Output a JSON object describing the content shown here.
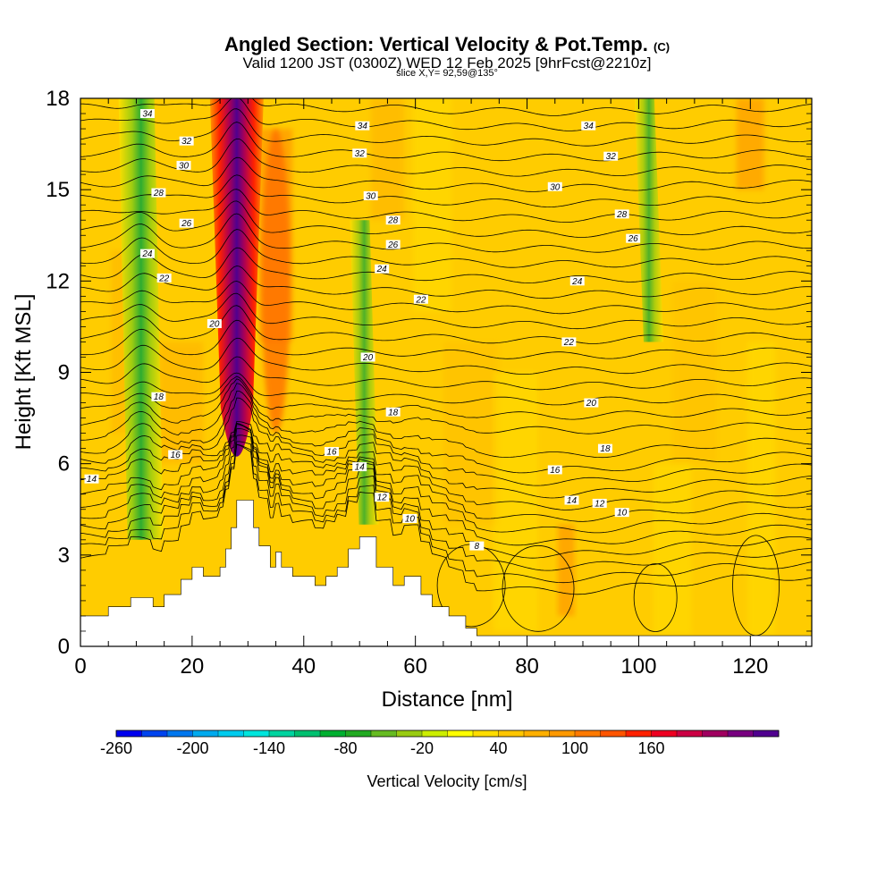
{
  "header": {
    "title": "Angled Section: Vertical Velocity & Pot.Temp.",
    "title_mark": "(C)",
    "subtitle": "Valid 1200 JST (0300Z) WED 12 Feb 2025 [9hrFcst@2210z]",
    "slice": "slice X,Y= 92,59@135°"
  },
  "colorbar": {
    "label": "Vertical Velocity [cm/s]",
    "tick_labels": [
      "-260",
      "-200",
      "-140",
      "-80",
      "-20",
      "40",
      "100",
      "160"
    ],
    "colors": [
      "#0000ee",
      "#0044ee",
      "#0077ee",
      "#00aaee",
      "#00ccee",
      "#00e6dd",
      "#00d4a0",
      "#00c070",
      "#00b030",
      "#22aa22",
      "#66bb22",
      "#99cc11",
      "#ccee00",
      "#ffff00",
      "#ffdd00",
      "#ffc600",
      "#ffb000",
      "#ff9900",
      "#ff7a00",
      "#ff5500",
      "#ff2200",
      "#ee0022",
      "#cc0044",
      "#a00060",
      "#780080",
      "#50008f"
    ]
  },
  "chart_data": {
    "type": "heatmap",
    "title": "Angled Section: Vertical Velocity & Pot.Temp.",
    "xlabel": "Distance [nm]",
    "ylabel": "Height [Kft MSL]",
    "xlim": [
      0,
      131
    ],
    "ylim": [
      0,
      18
    ],
    "x_ticks": [
      0,
      20,
      40,
      60,
      80,
      100,
      120
    ],
    "y_ticks": [
      0,
      3,
      6,
      9,
      12,
      15,
      18
    ],
    "fill_variable": "Vertical Velocity [cm/s]",
    "contour_variable": "Potential Temperature [C]",
    "updraft_cores": [
      {
        "x": 28,
        "y_range": [
          5.5,
          18
        ],
        "max_velocity": 180
      },
      {
        "x": 35,
        "y_range": [
          7,
          17
        ],
        "max_velocity": 70
      }
    ],
    "downdraft_bands": [
      {
        "x": 11,
        "y_range": [
          3.5,
          18
        ],
        "min_velocity": -110
      },
      {
        "x": 51,
        "y_range": [
          4,
          14
        ],
        "min_velocity": -60
      },
      {
        "x": 102,
        "y_range": [
          10,
          18
        ],
        "min_velocity": -40
      }
    ],
    "terrain": [
      [
        0,
        1
      ],
      [
        5,
        1
      ],
      [
        5,
        1.3
      ],
      [
        9,
        1.3
      ],
      [
        9,
        1.6
      ],
      [
        13,
        1.6
      ],
      [
        13,
        1.3
      ],
      [
        15,
        1.3
      ],
      [
        15,
        1.7
      ],
      [
        18,
        1.7
      ],
      [
        18,
        2.2
      ],
      [
        20,
        2.2
      ],
      [
        20,
        2.6
      ],
      [
        22,
        2.6
      ],
      [
        22,
        2.3
      ],
      [
        25,
        2.3
      ],
      [
        25,
        2.6
      ],
      [
        26,
        2.6
      ],
      [
        26,
        3.2
      ],
      [
        27,
        3.2
      ],
      [
        27,
        3.9
      ],
      [
        28,
        3.9
      ],
      [
        28,
        4.8
      ],
      [
        31,
        4.8
      ],
      [
        31,
        3.9
      ],
      [
        32,
        3.9
      ],
      [
        32,
        3.3
      ],
      [
        34,
        3.3
      ],
      [
        34,
        2.6
      ],
      [
        35,
        2.6
      ],
      [
        35,
        3.1
      ],
      [
        36,
        3.1
      ],
      [
        36,
        2.6
      ],
      [
        38,
        2.6
      ],
      [
        38,
        2.3
      ],
      [
        42,
        2.3
      ],
      [
        42,
        2
      ],
      [
        44,
        2
      ],
      [
        44,
        2.3
      ],
      [
        46,
        2.3
      ],
      [
        46,
        2.6
      ],
      [
        48,
        2.6
      ],
      [
        48,
        3.2
      ],
      [
        50,
        3.2
      ],
      [
        50,
        3.6
      ],
      [
        53,
        3.6
      ],
      [
        53,
        2.6
      ],
      [
        56,
        2.6
      ],
      [
        56,
        2
      ],
      [
        58,
        2
      ],
      [
        58,
        2.3
      ],
      [
        61,
        2.3
      ],
      [
        61,
        1.7
      ],
      [
        63,
        1.7
      ],
      [
        63,
        1.3
      ],
      [
        66,
        1.3
      ],
      [
        66,
        1
      ],
      [
        69,
        1
      ],
      [
        69,
        0.6
      ],
      [
        71,
        0.6
      ],
      [
        71,
        0.35
      ],
      [
        131,
        0.35
      ]
    ],
    "contour_labels": [
      {
        "value": "34",
        "x": 12,
        "y": 17.5
      },
      {
        "value": "32",
        "x": 19,
        "y": 16.6
      },
      {
        "value": "30",
        "x": 18.5,
        "y": 15.8
      },
      {
        "value": "28",
        "x": 14,
        "y": 14.9
      },
      {
        "value": "26",
        "x": 19,
        "y": 13.9
      },
      {
        "value": "24",
        "x": 12,
        "y": 12.9
      },
      {
        "value": "22",
        "x": 15,
        "y": 12.1
      },
      {
        "value": "20",
        "x": 24,
        "y": 10.6
      },
      {
        "value": "18",
        "x": 14,
        "y": 8.2
      },
      {
        "value": "16",
        "x": 17,
        "y": 6.3
      },
      {
        "value": "14",
        "x": 2,
        "y": 5.5
      },
      {
        "value": "34",
        "x": 50.5,
        "y": 17.1
      },
      {
        "value": "32",
        "x": 50,
        "y": 16.2
      },
      {
        "value": "30",
        "x": 52,
        "y": 14.8
      },
      {
        "value": "28",
        "x": 56,
        "y": 14.0
      },
      {
        "value": "26",
        "x": 56,
        "y": 13.2
      },
      {
        "value": "24",
        "x": 54,
        "y": 12.4
      },
      {
        "value": "22",
        "x": 61,
        "y": 11.4
      },
      {
        "value": "20",
        "x": 51.5,
        "y": 9.5
      },
      {
        "value": "18",
        "x": 56,
        "y": 7.7
      },
      {
        "value": "16",
        "x": 45,
        "y": 6.4
      },
      {
        "value": "14",
        "x": 50,
        "y": 5.9
      },
      {
        "value": "12",
        "x": 54,
        "y": 4.9
      },
      {
        "value": "10",
        "x": 59,
        "y": 4.2
      },
      {
        "value": "8",
        "x": 71,
        "y": 3.3
      },
      {
        "value": "34",
        "x": 91,
        "y": 17.1
      },
      {
        "value": "32",
        "x": 95,
        "y": 16.1
      },
      {
        "value": "30",
        "x": 85,
        "y": 15.1
      },
      {
        "value": "28",
        "x": 97,
        "y": 14.2
      },
      {
        "value": "26",
        "x": 99,
        "y": 13.4
      },
      {
        "value": "24",
        "x": 89,
        "y": 12.0
      },
      {
        "value": "22",
        "x": 87.5,
        "y": 10.0
      },
      {
        "value": "20",
        "x": 91.5,
        "y": 8.0
      },
      {
        "value": "18",
        "x": 94,
        "y": 6.5
      },
      {
        "value": "16",
        "x": 85,
        "y": 5.8
      },
      {
        "value": "14",
        "x": 88,
        "y": 4.8
      },
      {
        "value": "12",
        "x": 93,
        "y": 4.7
      },
      {
        "value": "10",
        "x": 97,
        "y": 4.4
      }
    ]
  }
}
